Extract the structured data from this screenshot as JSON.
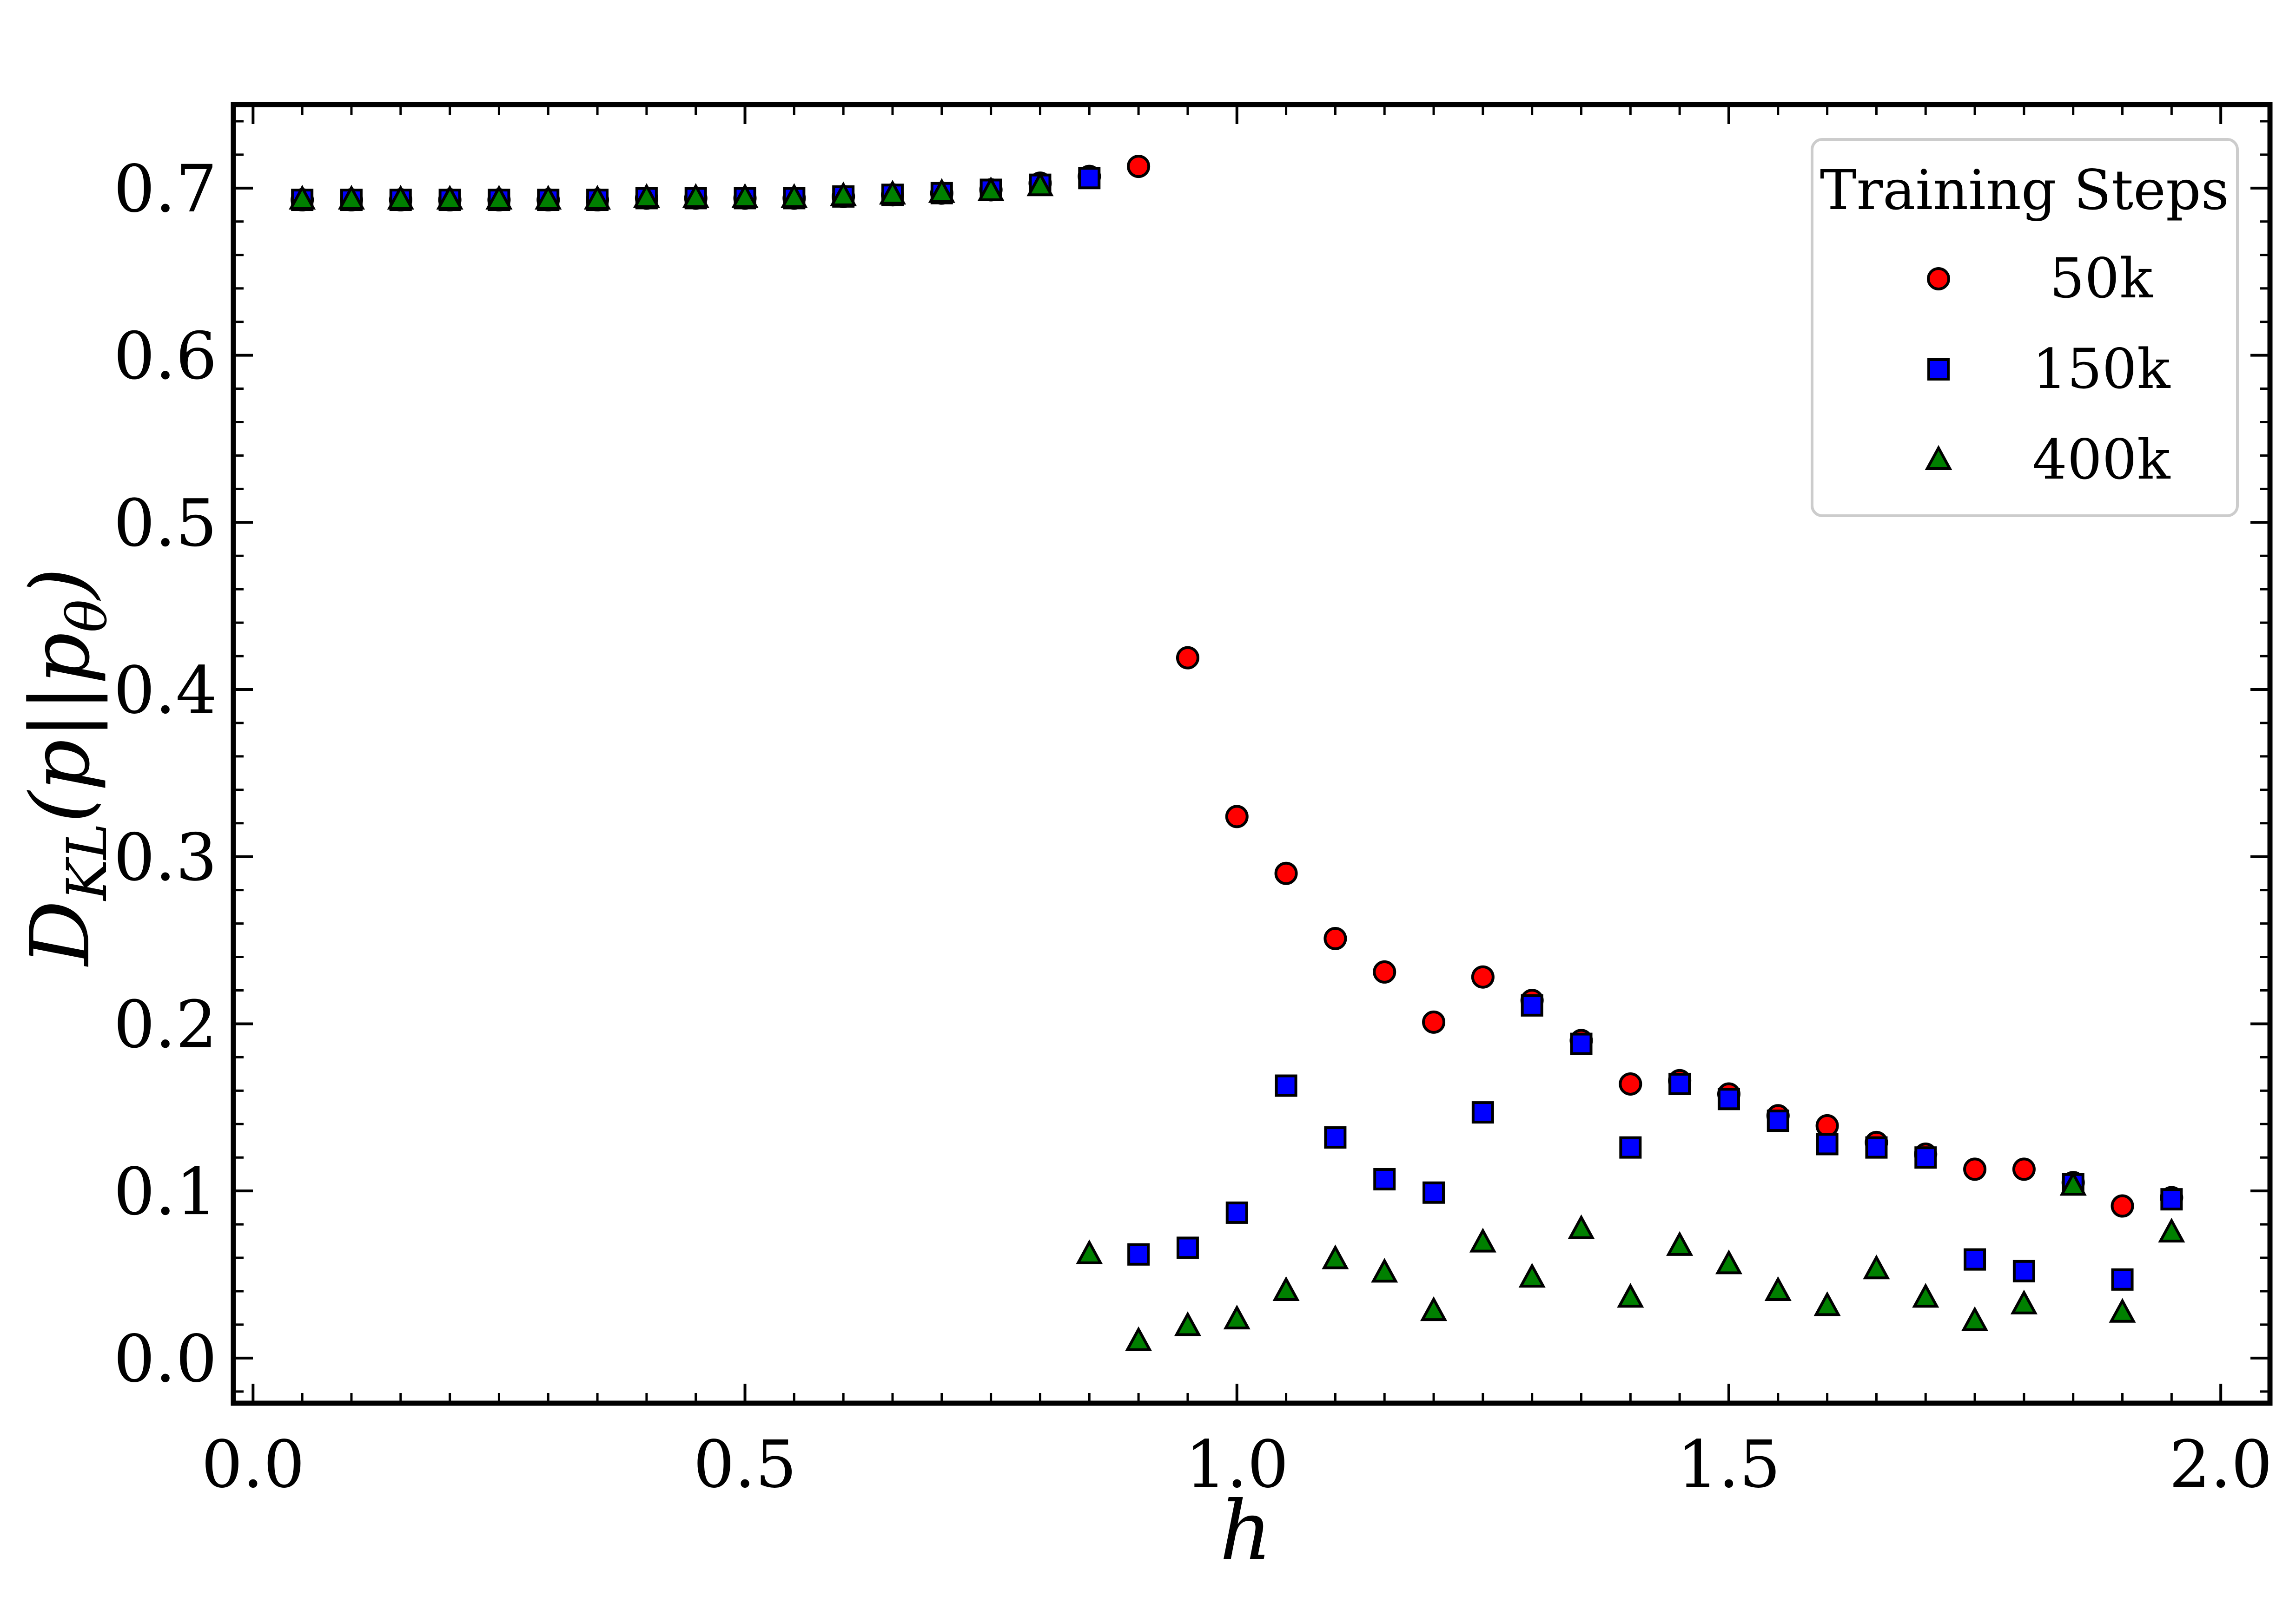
{
  "chart_data": {
    "type": "scatter",
    "title": "",
    "xlabel": "h",
    "ylabel": {
      "base": "D",
      "sub": "KL",
      "paren": "(p||p",
      "theta": "θ",
      "close": ")"
    },
    "xlim": [
      -0.02,
      2.05
    ],
    "ylim": [
      -0.027,
      0.75
    ],
    "grid": false,
    "x_ticks": [
      0.0,
      0.5,
      1.0,
      1.5,
      2.0
    ],
    "x_tick_labels": [
      "0.0",
      "0.5",
      "1.0",
      "1.5",
      "2.0"
    ],
    "y_ticks": [
      0.0,
      0.1,
      0.2,
      0.3,
      0.4,
      0.5,
      0.6,
      0.7
    ],
    "y_tick_labels": [
      "0.0",
      "0.1",
      "0.2",
      "0.3",
      "0.4",
      "0.5",
      "0.6",
      "0.7"
    ],
    "legend": {
      "title": "Training Steps",
      "position": "top-right"
    },
    "series": [
      {
        "name": "50k",
        "marker": "circle",
        "color": "#ff0000",
        "x": [
          0.05,
          0.1,
          0.15,
          0.2,
          0.25,
          0.3,
          0.35,
          0.4,
          0.45,
          0.5,
          0.55,
          0.6,
          0.65,
          0.7,
          0.75,
          0.8,
          0.85,
          0.9,
          0.95,
          1.0,
          1.05,
          1.1,
          1.15,
          1.2,
          1.25,
          1.3,
          1.35,
          1.4,
          1.45,
          1.5,
          1.55,
          1.6,
          1.65,
          1.7,
          1.75,
          1.8,
          1.85,
          1.9,
          1.95
        ],
        "y": [
          0.693,
          0.693,
          0.693,
          0.693,
          0.693,
          0.693,
          0.693,
          0.694,
          0.694,
          0.694,
          0.694,
          0.695,
          0.696,
          0.697,
          0.699,
          0.703,
          0.707,
          0.713,
          0.419,
          0.324,
          0.29,
          0.251,
          0.231,
          0.201,
          0.228,
          0.214,
          0.19,
          0.164,
          0.166,
          0.158,
          0.145,
          0.139,
          0.129,
          0.122,
          0.113,
          0.113,
          0.105,
          0.091,
          0.096
        ]
      },
      {
        "name": "150k",
        "marker": "square",
        "color": "#0000ff",
        "x": [
          0.05,
          0.1,
          0.15,
          0.2,
          0.25,
          0.3,
          0.35,
          0.4,
          0.45,
          0.5,
          0.55,
          0.6,
          0.65,
          0.7,
          0.75,
          0.8,
          0.85,
          0.9,
          0.95,
          1.0,
          1.05,
          1.1,
          1.15,
          1.2,
          1.25,
          1.3,
          1.35,
          1.4,
          1.45,
          1.5,
          1.55,
          1.6,
          1.65,
          1.7,
          1.75,
          1.8,
          1.85,
          1.9,
          1.95
        ],
        "y": [
          0.693,
          0.693,
          0.693,
          0.693,
          0.693,
          0.693,
          0.693,
          0.694,
          0.694,
          0.694,
          0.694,
          0.695,
          0.696,
          0.697,
          0.699,
          0.702,
          0.706,
          0.062,
          0.066,
          0.087,
          0.163,
          0.132,
          0.107,
          0.099,
          0.147,
          0.211,
          0.188,
          0.126,
          0.164,
          0.155,
          0.142,
          0.128,
          0.126,
          0.12,
          0.059,
          0.052,
          0.104,
          0.047,
          0.095
        ]
      },
      {
        "name": "400k",
        "marker": "triangle",
        "color": "#008000",
        "x": [
          0.05,
          0.1,
          0.15,
          0.2,
          0.25,
          0.3,
          0.35,
          0.4,
          0.45,
          0.5,
          0.55,
          0.6,
          0.65,
          0.7,
          0.75,
          0.8,
          0.85,
          0.9,
          0.95,
          1.0,
          1.05,
          1.1,
          1.15,
          1.2,
          1.25,
          1.3,
          1.35,
          1.4,
          1.45,
          1.5,
          1.55,
          1.6,
          1.65,
          1.7,
          1.75,
          1.8,
          1.85,
          1.9,
          1.95
        ],
        "y": [
          0.693,
          0.693,
          0.693,
          0.693,
          0.693,
          0.693,
          0.693,
          0.694,
          0.694,
          0.694,
          0.694,
          0.695,
          0.696,
          0.697,
          0.698,
          0.701,
          0.062,
          0.01,
          0.019,
          0.023,
          0.04,
          0.059,
          0.051,
          0.028,
          0.069,
          0.048,
          0.077,
          0.036,
          0.067,
          0.056,
          0.04,
          0.031,
          0.053,
          0.036,
          0.022,
          0.032,
          0.103,
          0.027,
          0.075
        ]
      }
    ]
  }
}
